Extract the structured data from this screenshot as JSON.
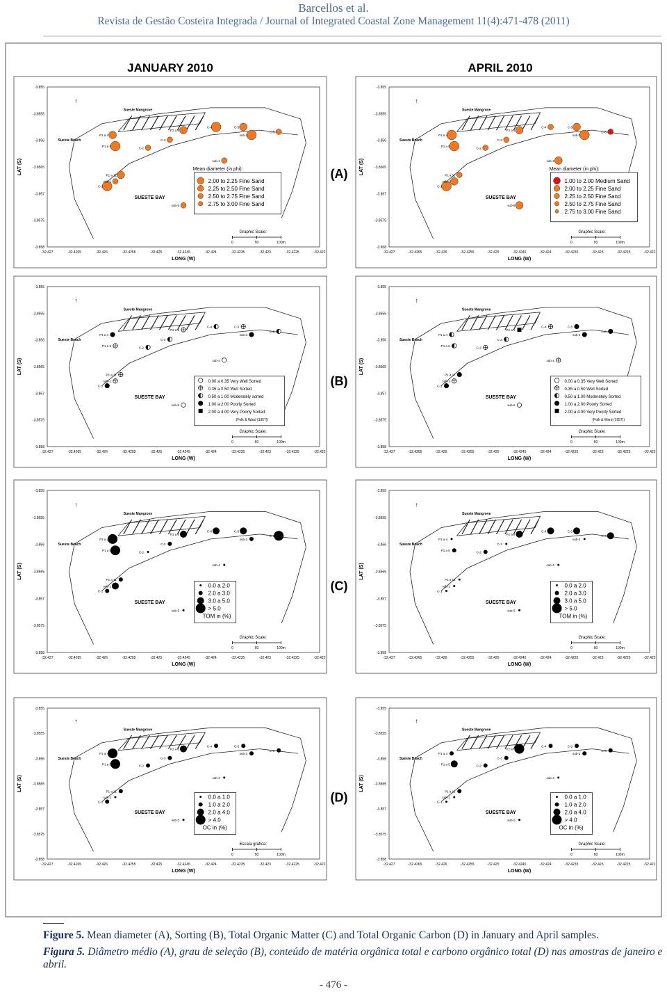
{
  "header": {
    "authors": "Barcellos et al.",
    "journal": "Revista de Gestão Costeira Integrada / Journal of Integrated Coastal Zone Management 11(4):471-478 (2011)"
  },
  "figure": {
    "columns": [
      "JANUARY 2010",
      "APRIL 2010"
    ],
    "rows": [
      {
        "letter": "(A)",
        "panels": [
          {
            "legend": {
              "title": "Mean diameter (in phi):",
              "items": [
                {
                  "label": "2.00 to 2.25  Fine Sand",
                  "color": "#f07a22"
                },
                {
                  "label": "2.25 to 2.50  Fine Sand",
                  "color": "#f07a22"
                },
                {
                  "label": "2.50 to 2.75  Fine Sand",
                  "color": "#f07a22"
                },
                {
                  "label": "2.75 to 3.00  Fine Sand",
                  "color": "#f07a22"
                }
              ]
            },
            "scale_title": "Graphic Scale:"
          },
          {
            "legend": {
              "title": "Mean diameter (in phi):",
              "items": [
                {
                  "label": "1.00 to 2.00  Medium Sand",
                  "color": "#e81010"
                },
                {
                  "label": "2.00 to 2.25  Fine Sand",
                  "color": "#f07a22"
                },
                {
                  "label": "2.25 to 2.50  Fine Sand",
                  "color": "#f07a22"
                },
                {
                  "label": "2.50 to 2.75  Fine Sand",
                  "color": "#f07a22"
                },
                {
                  "label": "2.75 to 3.00  Fine Sand",
                  "color": "#f07a22"
                }
              ]
            },
            "scale_title": "Graphic Scale:"
          }
        ]
      },
      {
        "letter": "(B)",
        "panels": [
          {
            "legend": {
              "items": [
                {
                  "label": "0.00 a 0.35  Very Well Sorted"
                },
                {
                  "label": "0.35 a 0.50  Well Sorted"
                },
                {
                  "label": "0.50 a 1.00  Moderately sorted"
                },
                {
                  "label": "1.00 a 2.00  Poorly Sorted"
                },
                {
                  "label": "2.00 a 4.00  Very Poorly Sorted"
                }
              ],
              "note": "(Folk & Ward (1957))"
            },
            "scale_title": "Graphic Scale:"
          },
          {
            "legend": {
              "items": [
                {
                  "label": "0.00 a 0.35  Very Well Sorted"
                },
                {
                  "label": "0.35 a 0.50  Well Sorted"
                },
                {
                  "label": "0.50 a 1.00  Moderately Sorted"
                },
                {
                  "label": "1.00 a 2.00  Poorly Sorted"
                },
                {
                  "label": "2.00 a 4.00  Very Poorly Sorted"
                }
              ],
              "note": "(Folk & Ward (1957))"
            },
            "scale_title": "Graphic Scale:"
          }
        ]
      },
      {
        "letter": "(C)",
        "panels": [
          {
            "legend": {
              "items": [
                {
                  "label": "0.0 a 2.0"
                },
                {
                  "label": "2.0 a 3.0"
                },
                {
                  "label": "3.0 a 5.0"
                },
                {
                  "label": "> 5.0"
                }
              ],
              "note": "TOM in (%)"
            },
            "scale_title": "Graphic Scale:"
          },
          {
            "legend": {
              "items": [
                {
                  "label": "0.0 a 2.0"
                },
                {
                  "label": "2.0 a 3.0"
                },
                {
                  "label": "3.0 a 5.0"
                },
                {
                  "label": "> 5.0"
                }
              ],
              "note": "TOM in (%)"
            },
            "scale_title": "Graphic Scale:"
          }
        ]
      },
      {
        "letter": "(D)",
        "panels": [
          {
            "legend": {
              "items": [
                {
                  "label": "0.0 a 1.0"
                },
                {
                  "label": "1.0 a 2.0"
                },
                {
                  "label": "2.0 a 4.0"
                },
                {
                  "label": "> 4.0"
                }
              ],
              "note": "OC in (%)"
            },
            "scale_title": "Escala gráfica:"
          },
          {
            "legend": {
              "items": [
                {
                  "label": "0.0 a 1.0"
                },
                {
                  "label": "1.0 a 2.0"
                },
                {
                  "label": "2.0 a 4.0"
                },
                {
                  "label": "> 4.0"
                }
              ],
              "note": "OC in (%)"
            },
            "scale_title": "Graphic Scale:"
          }
        ]
      }
    ]
  },
  "map": {
    "y_axis_label": "LAT (S)",
    "x_axis_label": "LONG (W)",
    "y_ticks": [
      "-3.855",
      "-3.8555",
      "-3.856",
      "-3.8565",
      "-3.857",
      "-3.8575",
      "-3.858"
    ],
    "x_ticks": [
      "-32.427",
      "-32.4265",
      "-32.426",
      "-32.4255",
      "-32.425",
      "-32.4245",
      "-32.424",
      "-32.4235",
      "-32.423",
      "-32.4225",
      "-32.422"
    ],
    "bay": "SUESTE BAY",
    "beach": "Sueste Beach",
    "mangrove": "Sueste Mangrove",
    "stations": [
      "P1 a 4",
      "P1 a 5",
      "P1 a 11",
      "C-1",
      "sub-1",
      "C-2",
      "C-3",
      "P2 a 6",
      "C-4",
      "C-5",
      "C-6",
      "sub-3",
      "sub-4",
      "sub-5"
    ],
    "scale_labels": [
      "0",
      "50",
      "100m"
    ]
  },
  "caption": {
    "en_label": "Figure 5.",
    "en_text": "Mean diameter (A), Sorting (B), Total Organic Matter (C) and Total Organic Carbon (D) in January and April samples.",
    "pt_label": "Figura 5.",
    "pt_text": "Diâmetro médio (A), grau de seleção (B), conteúdo de matéria orgânica total e carbono orgânico total (D) nas amostras de janeiro e abril."
  },
  "page_number": "- 476 -"
}
